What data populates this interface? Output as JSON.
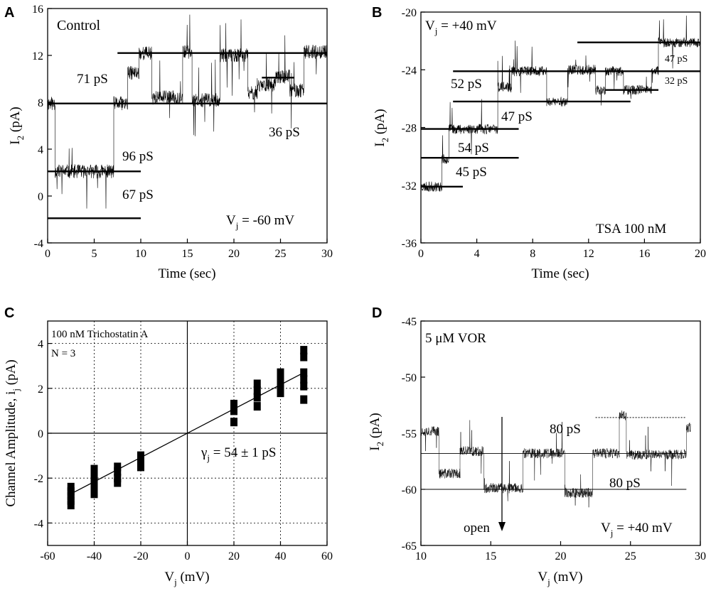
{
  "chart_data": [
    {
      "panel": "A",
      "type": "line",
      "title": "Control",
      "xlabel": "Time (sec)",
      "ylabel": "I2 (pA)",
      "xlim": [
        0,
        30
      ],
      "ylim": [
        -4,
        16
      ],
      "xticks": [
        0,
        5,
        10,
        15,
        20,
        25,
        30
      ],
      "yticks": [
        -4,
        0,
        4,
        8,
        12,
        16
      ],
      "annotations": [
        "71 pS",
        "96 pS",
        "67 pS",
        "36 pS",
        "Vj = -60 mV"
      ],
      "levels": [
        {
          "y": 12.2,
          "x": [
            7.5,
            30
          ]
        },
        {
          "y": 7.9,
          "x": [
            0,
            30
          ]
        },
        {
          "y": 2.1,
          "x": [
            0,
            10
          ]
        },
        {
          "y": -1.9,
          "x": [
            0,
            10
          ]
        },
        {
          "y": 10.1,
          "x": [
            23,
            26.5
          ]
        }
      ],
      "trace_segments": [
        {
          "t": [
            0,
            0.8
          ],
          "level": 7.9
        },
        {
          "t": [
            0.8,
            7.1
          ],
          "level": 2.1
        },
        {
          "t": [
            7.1,
            8.6
          ],
          "level": 7.9
        },
        {
          "t": [
            8.6,
            9.8
          ],
          "level": 10.5
        },
        {
          "t": [
            9.8,
            11.2
          ],
          "level": 12.2
        },
        {
          "t": [
            11.2,
            14.5
          ],
          "level": 8.4
        },
        {
          "t": [
            14.5,
            15.5
          ],
          "level": 12.3
        },
        {
          "t": [
            15.5,
            18.5
          ],
          "level": 8.2
        },
        {
          "t": [
            18.5,
            21.5
          ],
          "level": 12.0
        },
        {
          "t": [
            21.5,
            22.5
          ],
          "level": 8.8
        },
        {
          "t": [
            22.5,
            24.5
          ],
          "level": 9.5
        },
        {
          "t": [
            24.5,
            26
          ],
          "level": 10.2
        },
        {
          "t": [
            26,
            27.5
          ],
          "level": 9.0
        },
        {
          "t": [
            27.5,
            30
          ],
          "level": 12.3
        }
      ],
      "noise": 0.6
    },
    {
      "panel": "B",
      "type": "line",
      "title": "TSA 100 nM",
      "xlabel": "Time (sec)",
      "ylabel": "I2 (pA)",
      "xlim": [
        0,
        20
      ],
      "ylim": [
        -36,
        -20
      ],
      "xticks": [
        0,
        4,
        8,
        12,
        16,
        20
      ],
      "yticks": [
        -36,
        -32,
        -28,
        -24,
        -20
      ],
      "annotations": [
        "Vj = +40 mV",
        "52 pS",
        "47 pS",
        "54 pS",
        "45 pS",
        "47 pS",
        "32 pS"
      ],
      "levels": [
        {
          "y": -22.1,
          "x": [
            11.2,
            20
          ]
        },
        {
          "y": -24.1,
          "x": [
            2.3,
            20
          ]
        },
        {
          "y": -25.4,
          "x": [
            13.2,
            17
          ]
        },
        {
          "y": -26.2,
          "x": [
            2.3,
            15
          ]
        },
        {
          "y": -28.1,
          "x": [
            0,
            7
          ]
        },
        {
          "y": -30.1,
          "x": [
            0,
            7
          ]
        },
        {
          "y": -32.1,
          "x": [
            0,
            3
          ]
        }
      ],
      "trace_segments": [
        {
          "t": [
            0,
            1.5
          ],
          "level": -32.1
        },
        {
          "t": [
            1.5,
            2.0
          ],
          "level": -30.2
        },
        {
          "t": [
            2.0,
            5.5
          ],
          "level": -28.1
        },
        {
          "t": [
            5.5,
            6.5
          ],
          "level": -25.2
        },
        {
          "t": [
            6.5,
            9
          ],
          "level": -24.1
        },
        {
          "t": [
            9,
            10.5
          ],
          "level": -26.2
        },
        {
          "t": [
            10.5,
            12.5
          ],
          "level": -24.0
        },
        {
          "t": [
            12.5,
            13.2
          ],
          "level": -25.4
        },
        {
          "t": [
            13.2,
            14.5
          ],
          "level": -24.1
        },
        {
          "t": [
            14.5,
            16.5
          ],
          "level": -25.4
        },
        {
          "t": [
            16.5,
            17
          ],
          "level": -24.1
        },
        {
          "t": [
            17,
            20
          ],
          "level": -22.1
        }
      ],
      "noise": 0.35
    },
    {
      "panel": "C",
      "type": "scatter",
      "xlabel": "Vj (mV)",
      "ylabel": "Channel Amplitude, ij (pA)",
      "xlim": [
        -60,
        60
      ],
      "ylim": [
        -5,
        5
      ],
      "xticks": [
        -60,
        -40,
        -20,
        0,
        20,
        40,
        60
      ],
      "yticks": [
        -4,
        -2,
        0,
        2,
        4
      ],
      "annotations": [
        "100 nM Trichostatin A",
        "N = 3",
        "γj = 54 ± 1 pS"
      ],
      "fit_line": {
        "x": [
          -50,
          50
        ],
        "y": [
          -2.7,
          2.7
        ]
      },
      "points": [
        {
          "x": -50,
          "y": [
            -2.4,
            -2.6,
            -2.8,
            -3.0,
            -3.2
          ]
        },
        {
          "x": -40,
          "y": [
            -1.6,
            -1.9,
            -2.2,
            -2.4,
            -2.7
          ]
        },
        {
          "x": -30,
          "y": [
            -1.5,
            -1.7,
            -2.0,
            -2.2
          ]
        },
        {
          "x": -20,
          "y": [
            -1.0,
            -1.3,
            -1.5
          ]
        },
        {
          "x": 20,
          "y": [
            1.3,
            1.0,
            0.5
          ]
        },
        {
          "x": 30,
          "y": [
            2.2,
            1.9,
            1.6,
            1.2
          ]
        },
        {
          "x": 40,
          "y": [
            2.7,
            2.4,
            2.1,
            1.8
          ]
        },
        {
          "x": 50,
          "y": [
            3.7,
            3.4,
            2.7,
            2.4,
            2.1,
            1.5
          ]
        }
      ]
    },
    {
      "panel": "D",
      "type": "line",
      "title": "5 μM VOR",
      "xlabel": "Vj (mV)",
      "ylabel": "I2 (pA)",
      "xlim": [
        10,
        30
      ],
      "ylim": [
        -65,
        -45
      ],
      "xticks": [
        10,
        15,
        20,
        25,
        30
      ],
      "yticks": [
        -65,
        -60,
        -55,
        -50,
        -45
      ],
      "annotations": [
        "80 pS",
        "80 pS",
        "open",
        "Vj = +40 mV"
      ],
      "levels": [
        {
          "y": -56.8,
          "x": [
            10,
            29
          ]
        },
        {
          "y": -60.0,
          "x": [
            10,
            29
          ]
        },
        {
          "y": -53.6,
          "x": [
            22.5,
            29
          ]
        }
      ],
      "trace_segments": [
        {
          "t": [
            10,
            11.3
          ],
          "level": -54.8
        },
        {
          "t": [
            11.3,
            12.8
          ],
          "level": -58.6
        },
        {
          "t": [
            12.8,
            14.5
          ],
          "level": -56.6
        },
        {
          "t": [
            14.5,
            17.3
          ],
          "level": -59.9
        },
        {
          "t": [
            17.3,
            20.3
          ],
          "level": -56.8
        },
        {
          "t": [
            20.3,
            22.3
          ],
          "level": -60.3
        },
        {
          "t": [
            22.3,
            24.2
          ],
          "level": -56.8
        },
        {
          "t": [
            24.2,
            24.7
          ],
          "level": -53.4
        },
        {
          "t": [
            24.7,
            29
          ],
          "level": -56.9
        },
        {
          "t": [
            29,
            29.3
          ],
          "level": -54.5
        }
      ],
      "noise": 0.45
    }
  ],
  "panel_labels": [
    "A",
    "B",
    "C",
    "D"
  ],
  "axis_text": {
    "a_ylabel_main": "I",
    "a_ylabel_sub": "2",
    "a_ylabel_tail": " (pA)",
    "a_vj_main": "V",
    "a_vj_sub": "j",
    "a_vj_tail": " = -60 mV",
    "b_vj_main": "V",
    "b_vj_sub": "j",
    "b_vj_tail": " = +40 mV",
    "c_xlabel_main": "V",
    "c_xlabel_sub": "j",
    "c_xlabel_tail": " (mV)",
    "c_ylabel_main": "Channel Amplitude, i",
    "c_ylabel_sub": "j",
    "c_ylabel_tail": " (pA)",
    "c_gamma_main": "γ",
    "c_gamma_sub": "j",
    "c_gamma_tail": " = 54 ± 1 pS",
    "d_xlabel_main": "V",
    "d_xlabel_sub": "j",
    "d_xlabel_tail": " (mV)",
    "d_vj_main": "V",
    "d_vj_sub": "j",
    "d_vj_tail": " = +40 mV"
  }
}
